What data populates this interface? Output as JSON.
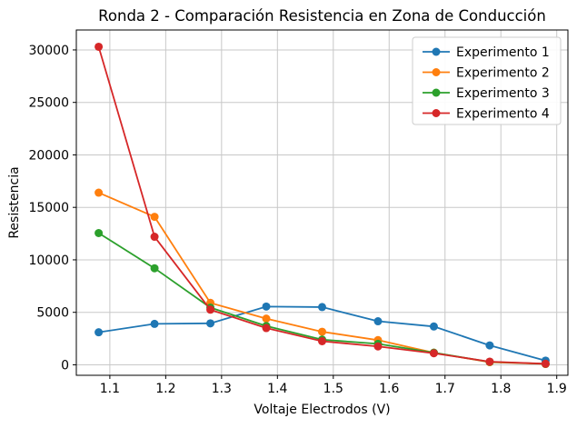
{
  "figure": {
    "background": "#ffffff"
  },
  "chart_data": {
    "type": "line",
    "title": "Ronda 2 - Comparación Resistencia en Zona de Conducción",
    "xlabel": "Voltaje Electrodos (V)",
    "ylabel": "Resistencia",
    "x": [
      1.08,
      1.18,
      1.28,
      1.38,
      1.48,
      1.58,
      1.68,
      1.78,
      1.88
    ],
    "series": [
      {
        "name": "Experimento 1",
        "color": "#1f77b4",
        "values": [
          3100,
          3900,
          3950,
          5550,
          5500,
          4150,
          3650,
          1850,
          400
        ]
      },
      {
        "name": "Experimento 2",
        "color": "#ff7f0e",
        "values": [
          16400,
          14100,
          5900,
          4400,
          3150,
          2350,
          1150,
          250,
          80
        ]
      },
      {
        "name": "Experimento 3",
        "color": "#2ca02c",
        "values": [
          12550,
          9200,
          5450,
          3700,
          2400,
          2000,
          1150,
          280,
          90
        ]
      },
      {
        "name": "Experimento 4",
        "color": "#d62728",
        "values": [
          30300,
          12200,
          5250,
          3500,
          2250,
          1750,
          1100,
          300,
          100
        ]
      }
    ],
    "xlim": [
      1.04,
      1.92
    ],
    "ylim": [
      -1000,
      31900
    ],
    "xticks": [
      1.1,
      1.2,
      1.3,
      1.4,
      1.5,
      1.6,
      1.7,
      1.8,
      1.9
    ],
    "xtick_labels": [
      "1.1",
      "1.2",
      "1.3",
      "1.4",
      "1.5",
      "1.6",
      "1.7",
      "1.8",
      "1.9"
    ],
    "yticks": [
      0,
      5000,
      10000,
      15000,
      20000,
      25000,
      30000
    ],
    "ytick_labels": [
      "0",
      "5000",
      "10000",
      "15000",
      "20000",
      "25000",
      "30000"
    ],
    "grid": true,
    "grid_color": "#c8c8c8",
    "axis_color": "#000000",
    "legend_position": "upper right",
    "marker": "circle",
    "line_width": 1.8,
    "marker_radius": 4.5
  }
}
